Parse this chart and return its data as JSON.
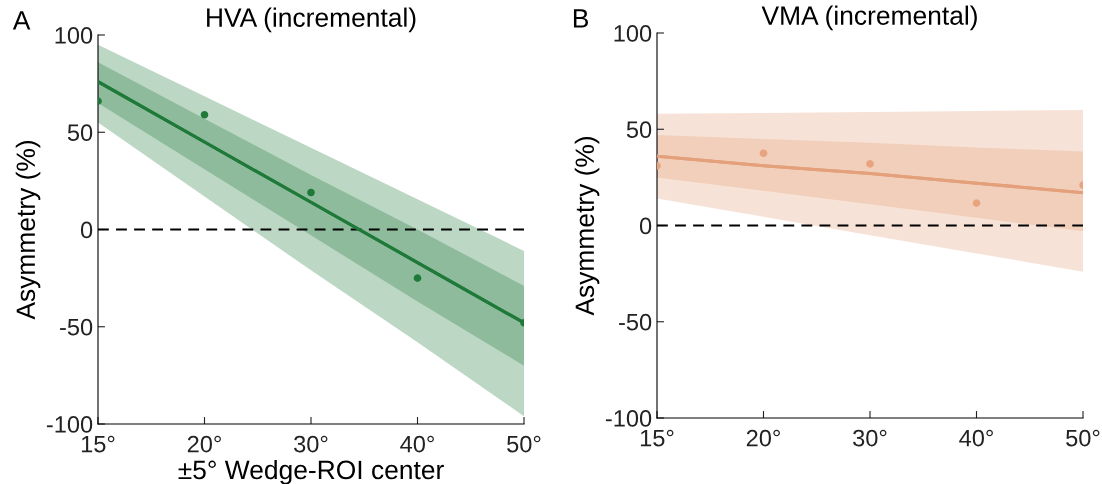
{
  "chart_data": [
    {
      "type": "line",
      "title": "HVA (incremental)",
      "xlabel": "±5° Wedge-ROI center",
      "ylabel": "Asymmetry (%)",
      "annotations": [
        "A"
      ],
      "categories": [
        "15°",
        "20°",
        "30°",
        "40°",
        "50°"
      ],
      "series": [
        {
          "color": "#1f7a3a",
          "values": [
            76,
            45,
            14,
            -17,
            -48
          ],
          "lower": [
            55,
            17,
            -21,
            -58,
            -96
          ],
          "upper": [
            95,
            68.5,
            42,
            15.5,
            -11
          ]
        },
        {
          "color": "#1f7a3a",
          "values": [
            76,
            45,
            14,
            -17,
            -48
          ],
          "lower": [
            65,
            31,
            -3,
            -37,
            -70
          ],
          "upper": [
            86,
            57,
            28,
            0,
            -29
          ]
        },
        {
          "type": "scatter",
          "color": "#1f7a3a",
          "values": [
            66,
            59,
            19,
            -25,
            -48
          ]
        }
      ],
      "ylim": [
        -100,
        100
      ],
      "yticks": [
        -100,
        -50,
        0,
        50,
        100
      ],
      "ref_lines": [
        {
          "axis": "y",
          "value": 0,
          "color": "#000000",
          "line_style": "dashed"
        }
      ],
      "grid": false,
      "legend": false
    },
    {
      "type": "line",
      "title": "VMA (incremental)",
      "ylabel": "Asymmetry (%)",
      "annotations": [
        "B"
      ],
      "categories": [
        "15°",
        "20°",
        "30°",
        "40°",
        "50°"
      ],
      "series": [
        {
          "color": "#e3a07a",
          "values": [
            36,
            31,
            27,
            22,
            17
          ],
          "lower": [
            14,
            4.5,
            -5,
            -14.5,
            -24
          ],
          "upper": [
            58,
            58.5,
            59,
            59.5,
            60
          ]
        },
        {
          "color": "#e3a07a",
          "values": [
            36,
            31,
            27,
            22,
            17
          ],
          "lower": [
            25,
            18,
            11,
            4,
            -3
          ],
          "upper": [
            47,
            45,
            43,
            40.5,
            38.5
          ]
        },
        {
          "type": "scatter",
          "color": "#e8a47f",
          "values": [
            31,
            37.5,
            32,
            11.6,
            21
          ]
        }
      ],
      "ylim": [
        -100,
        100
      ],
      "yticks": [
        -100,
        -50,
        0,
        50,
        100
      ],
      "ref_lines": [
        {
          "axis": "y",
          "value": 0,
          "color": "#000000",
          "line_style": "dashed"
        }
      ],
      "grid": false,
      "legend": false
    }
  ]
}
